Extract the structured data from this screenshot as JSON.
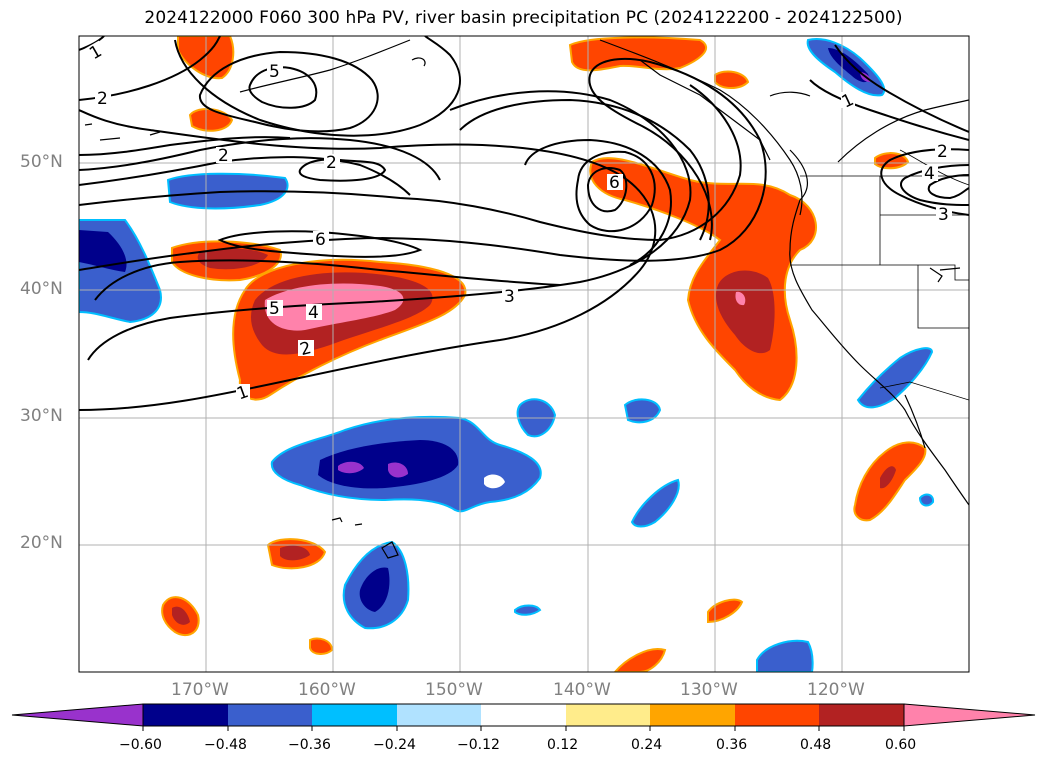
{
  "title": "2024122000 F060 300 hPa PV, river basin precipitation PC (2024122200 - 2024122500)",
  "map": {
    "lat_range": [
      10,
      60
    ],
    "lon_range": [
      -180,
      -110
    ],
    "grid_lines": true,
    "lat_ticks": [
      {
        "value": 20,
        "label": "20°N"
      },
      {
        "value": 30,
        "label": "30°N"
      },
      {
        "value": 40,
        "label": "40°N"
      },
      {
        "value": 50,
        "label": "50°N"
      }
    ],
    "lon_ticks": [
      {
        "value": -170,
        "label": "170°W"
      },
      {
        "value": -160,
        "label": "160°W"
      },
      {
        "value": -150,
        "label": "150°W"
      },
      {
        "value": -140,
        "label": "140°W"
      },
      {
        "value": -130,
        "label": "130°W"
      },
      {
        "value": -120,
        "label": "120°W"
      }
    ],
    "contour_labels": [
      "1",
      "2",
      "5",
      "2",
      "2",
      "6",
      "6",
      "5",
      "4",
      "2",
      "1",
      "3",
      "1",
      "2",
      "4",
      "3"
    ]
  },
  "colorbar": {
    "ticks": [
      "−0.60",
      "−0.48",
      "−0.36",
      "−0.24",
      "−0.12",
      "0.12",
      "0.24",
      "0.36",
      "0.48",
      "0.60"
    ],
    "colors": [
      "#9932cc",
      "#00008b",
      "#3a5fcd",
      "#00bfff",
      "#b0e2ff",
      "#ffffff",
      "#ffec8b",
      "#ffa500",
      "#ff4500",
      "#b22222",
      "#ff82ab"
    ]
  },
  "colors": {
    "land_outline": "#000000",
    "grid": "#b0b0b0",
    "contour": "#000000",
    "tick_label": "#808080"
  }
}
